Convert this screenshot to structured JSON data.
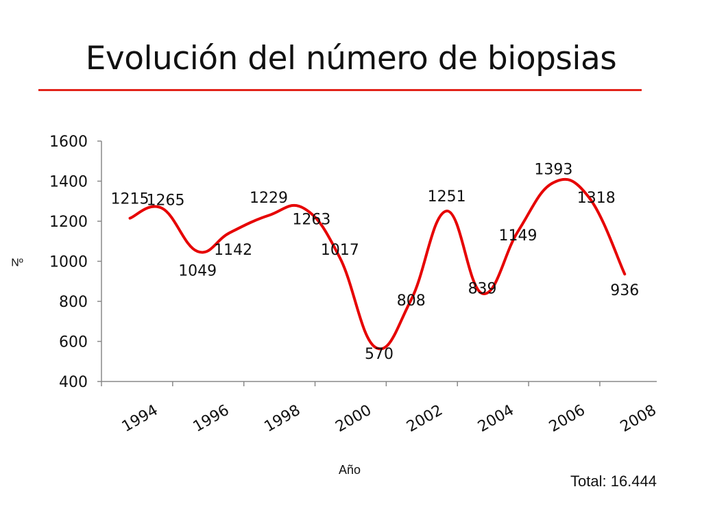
{
  "title": "Evolución del número de biopsias",
  "total_label": "Total: 16.444",
  "colors": {
    "accent": "#e2231a",
    "line": "#e60000",
    "text": "#111111",
    "axis": "#888888"
  },
  "chart_data": {
    "type": "line",
    "xlabel": "Año",
    "ylabel": "Nº",
    "ylim": [
      400,
      1600
    ],
    "yticks": [
      400,
      600,
      800,
      1000,
      1200,
      1400,
      1600
    ],
    "xlim": [
      1993.2,
      2008.8
    ],
    "xticks": [
      1994,
      1996,
      1998,
      2000,
      2002,
      2004,
      2006,
      2008
    ],
    "grid": false,
    "series": [
      {
        "values": [
          {
            "x": 1994.0,
            "y": 1215
          },
          {
            "x": 1994.9,
            "y": 1265
          },
          {
            "x": 1995.9,
            "y": 1049
          },
          {
            "x": 1996.8,
            "y": 1142
          },
          {
            "x": 1997.9,
            "y": 1229
          },
          {
            "x": 1998.9,
            "y": 1263
          },
          {
            "x": 1999.9,
            "y": 1017
          },
          {
            "x": 2000.9,
            "y": 570
          },
          {
            "x": 2001.9,
            "y": 808
          },
          {
            "x": 2002.9,
            "y": 1251
          },
          {
            "x": 2003.9,
            "y": 839
          },
          {
            "x": 2004.9,
            "y": 1149
          },
          {
            "x": 2005.9,
            "y": 1393
          },
          {
            "x": 2006.9,
            "y": 1318
          },
          {
            "x": 2007.9,
            "y": 936
          }
        ]
      }
    ],
    "data_labels": [
      {
        "text": "1215",
        "x": 1994.0,
        "y": 1288
      },
      {
        "text": "1265",
        "x": 1995.0,
        "y": 1280
      },
      {
        "text": "1049",
        "x": 1995.9,
        "y": 928
      },
      {
        "text": "1142",
        "x": 1996.9,
        "y": 1032
      },
      {
        "text": "1229",
        "x": 1997.9,
        "y": 1292
      },
      {
        "text": "1263",
        "x": 1999.1,
        "y": 1185
      },
      {
        "text": "1017",
        "x": 1999.9,
        "y": 1032
      },
      {
        "text": "570",
        "x": 2001.0,
        "y": 513
      },
      {
        "text": "808",
        "x": 2001.9,
        "y": 780
      },
      {
        "text": "1251",
        "x": 2002.9,
        "y": 1300
      },
      {
        "text": "839",
        "x": 2003.9,
        "y": 840
      },
      {
        "text": "1149",
        "x": 2004.9,
        "y": 1105
      },
      {
        "text": "1393",
        "x": 2005.9,
        "y": 1434
      },
      {
        "text": "1318",
        "x": 2007.1,
        "y": 1292
      },
      {
        "text": "936",
        "x": 2007.9,
        "y": 830
      }
    ]
  }
}
